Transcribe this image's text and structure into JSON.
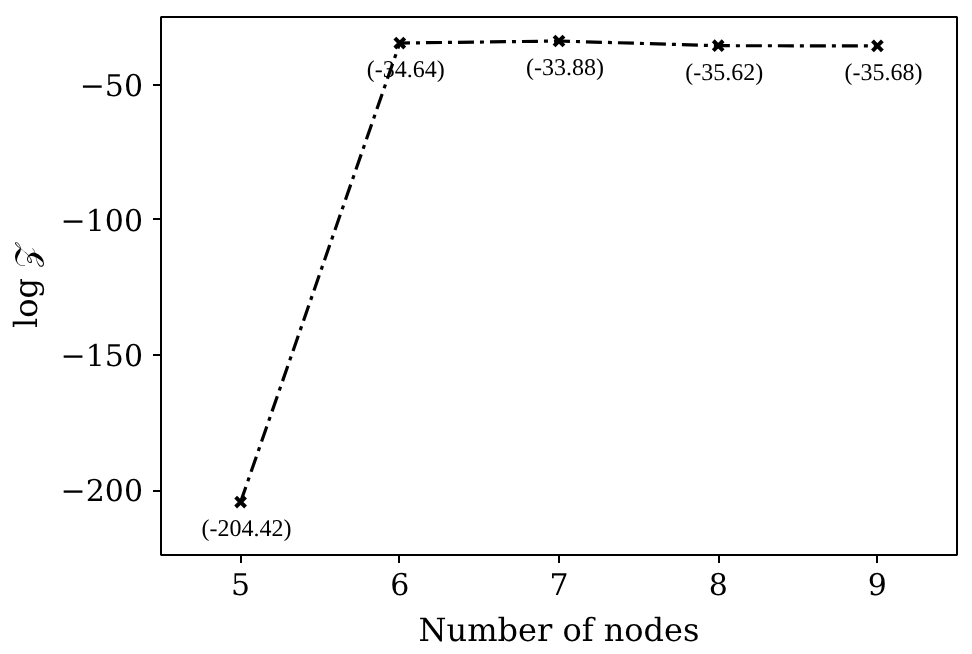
{
  "chart_data": {
    "type": "line",
    "xlabel": "Number of nodes",
    "ylabel": "log 𝒵",
    "x": [
      5,
      6,
      7,
      8,
      9
    ],
    "series": [
      {
        "color": "#000000",
        "values": [
          -204.42,
          -34.64,
          -33.88,
          -35.62,
          -35.68
        ],
        "value_labels": [
          "(-204.42)",
          "(-34.64)",
          "(-33.88)",
          "(-35.62)",
          "(-35.68)"
        ]
      }
    ],
    "xlim": [
      4.5,
      9.5
    ],
    "ylim": [
      -224,
      -25
    ],
    "xticks": [
      5,
      6,
      7,
      8,
      9
    ],
    "yticks": [
      {
        "value": -200,
        "label": "−200"
      },
      {
        "value": -150,
        "label": "−150"
      },
      {
        "value": -100,
        "label": "−100"
      },
      {
        "value": -50,
        "label": "−50"
      }
    ],
    "grid": false,
    "marker": "cross",
    "line_style": "dashdot"
  }
}
